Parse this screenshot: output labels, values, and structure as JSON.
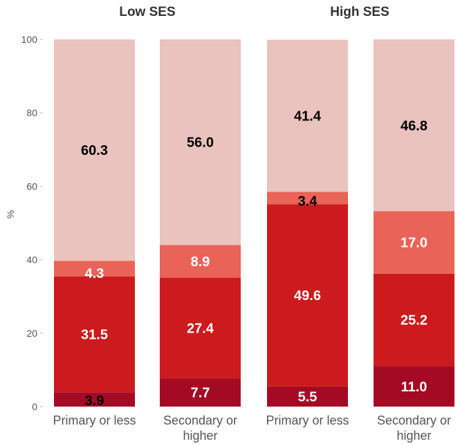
{
  "chart_data": {
    "type": "bar",
    "stacked": true,
    "panels": [
      {
        "title": "Low SES",
        "categories": [
          "Primary or less",
          "Secondary or higher"
        ],
        "stacks": [
          [
            3.9,
            31.5,
            4.3,
            60.3
          ],
          [
            7.7,
            27.4,
            8.9,
            56.0
          ]
        ]
      },
      {
        "title": "High SES",
        "categories": [
          "Primary or less",
          "Secondary or higher"
        ],
        "stacks": [
          [
            5.5,
            49.6,
            3.4,
            41.4
          ],
          [
            11.0,
            25.2,
            17.0,
            46.8
          ]
        ]
      }
    ],
    "ylabel": "%",
    "xlabel": "",
    "ylim": [
      0,
      100
    ],
    "yticks": [
      0,
      20,
      40,
      60,
      80,
      100
    ],
    "grid": false,
    "segment_colors": [
      "#a50a24",
      "#cc1a1d",
      "#e96456",
      "#eac2be"
    ],
    "label_colors": {
      "default": "#ffffff",
      "on_light": "#000000"
    }
  }
}
